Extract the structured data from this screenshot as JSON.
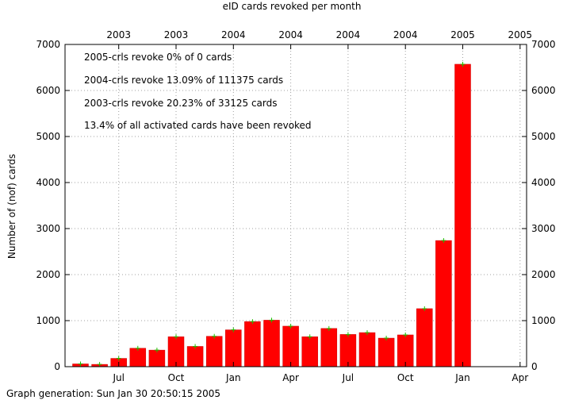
{
  "chart_data": {
    "type": "bar",
    "title": "eID cards revoked per month",
    "ylabel": "Number of (nof) cards",
    "footer": "Graph generation: Sun Jan 30 20:50:15 2005",
    "ylim": [
      0,
      7000
    ],
    "yticks": [
      0,
      1000,
      2000,
      3000,
      4000,
      5000,
      6000,
      7000
    ],
    "grid": true,
    "month_labels": [
      "Jul",
      "Oct",
      "Jan",
      "Apr",
      "Jul",
      "Oct",
      "Jan",
      "Apr"
    ],
    "year_labels": [
      "2003",
      "2003",
      "2004",
      "2004",
      "2004",
      "2004",
      "2005",
      "2005"
    ],
    "categories": [
      "2003-05",
      "2003-06",
      "2003-07",
      "2003-08",
      "2003-09",
      "2003-10",
      "2003-11",
      "2003-12",
      "2004-01",
      "2004-02",
      "2004-03",
      "2004-04",
      "2004-05",
      "2004-06",
      "2004-07",
      "2004-08",
      "2004-09",
      "2004-10",
      "2004-11",
      "2004-12",
      "2005-01"
    ],
    "values": [
      60,
      50,
      180,
      400,
      360,
      650,
      440,
      660,
      800,
      980,
      1010,
      880,
      650,
      830,
      700,
      740,
      620,
      690,
      1260,
      2740,
      6570
    ],
    "annotations": [
      "2005-crls revoke 0% of 0 cards",
      "2004-crls revoke 13.09% of 111375 cards",
      "2003-crls revoke 20.23% of 33125 cards",
      "13.4% of all activated cards have been revoked"
    ],
    "colors": {
      "bar": "#ff0000",
      "bar_edge": "#cc0000",
      "error_tick": "#22bb00",
      "grid": "#a0a0a0"
    }
  }
}
